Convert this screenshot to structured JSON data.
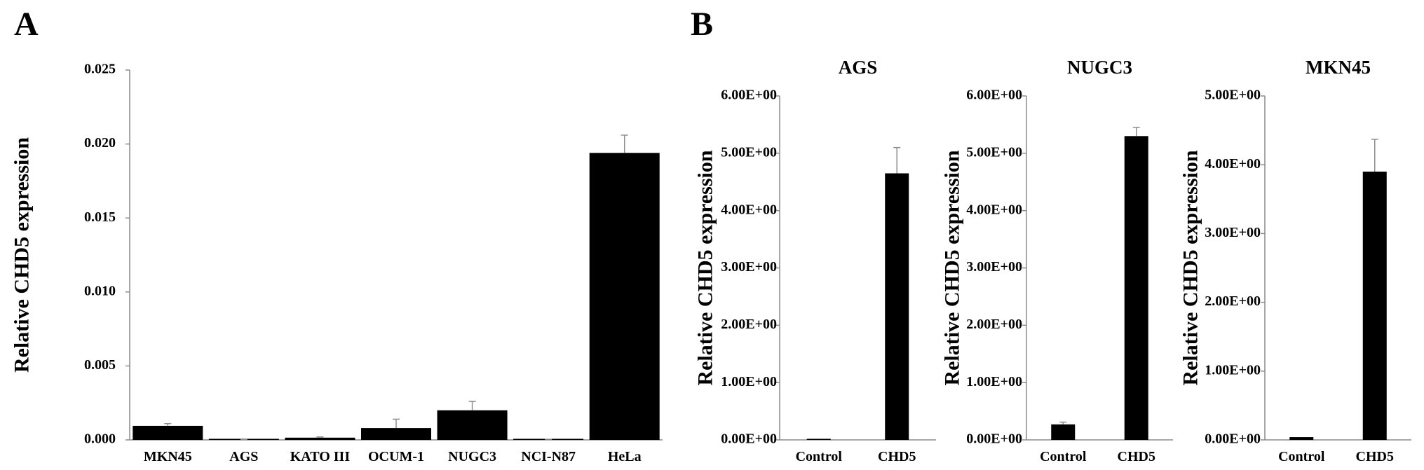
{
  "panels": {
    "a": "A",
    "b": "B"
  },
  "chart_data": [
    {
      "type": "bar",
      "title": "",
      "xlabel": "",
      "ylabel": "Relative CHD5 expression",
      "categories": [
        "MKN45",
        "AGS",
        "KATO III",
        "OCUM-1",
        "NUGC3",
        "NCI-N87",
        "HeLa"
      ],
      "values": [
        0.00095,
        1e-05,
        0.00015,
        0.0008,
        0.002,
        3e-05,
        0.0194
      ],
      "errors": [
        0.00015,
        1e-05,
        5e-05,
        0.0006,
        0.0006,
        1e-05,
        0.0012
      ],
      "ylim": [
        0,
        0.025
      ],
      "yticks": [
        "0.000",
        "0.005",
        "0.010",
        "0.015",
        "0.020",
        "0.025"
      ],
      "grid": false
    },
    {
      "type": "bar",
      "title": "AGS",
      "xlabel": "",
      "ylabel": "Relative CHD5 expression",
      "categories": [
        "Control",
        "CHD5"
      ],
      "values": [
        0.01,
        4.65
      ],
      "errors": [
        0.0,
        0.45
      ],
      "ylim": [
        0,
        6
      ],
      "yticks": [
        "0.00E+00",
        "1.00E+00",
        "2.00E+00",
        "3.00E+00",
        "4.00E+00",
        "5.00E+00",
        "6.00E+00"
      ],
      "grid": false
    },
    {
      "type": "bar",
      "title": "NUGC3",
      "xlabel": "",
      "ylabel": "Relative CHD5 expression",
      "categories": [
        "Control",
        "CHD5"
      ],
      "values": [
        0.27,
        5.3
      ],
      "errors": [
        0.04,
        0.15
      ],
      "ylim": [
        0,
        6
      ],
      "yticks": [
        "0.00E+00",
        "1.00E+00",
        "2.00E+00",
        "3.00E+00",
        "4.00E+00",
        "5.00E+00",
        "6.00E+00"
      ],
      "grid": false
    },
    {
      "type": "bar",
      "title": "MKN45",
      "xlabel": "",
      "ylabel": "Relative CHD5 expression",
      "categories": [
        "Control",
        "CHD5"
      ],
      "values": [
        0.04,
        3.9
      ],
      "errors": [
        0.0,
        0.47
      ],
      "ylim": [
        0,
        5
      ],
      "yticks": [
        "0.00E+00",
        "1.00E+00",
        "2.00E+00",
        "3.00E+00",
        "4.00E+00",
        "5.00E+00"
      ],
      "grid": false
    }
  ]
}
